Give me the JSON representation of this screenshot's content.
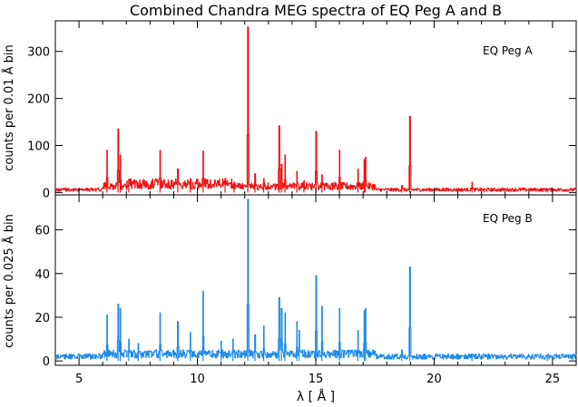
{
  "title": "Combined Chandra MEG spectra of EQ Peg A and B",
  "colors": {
    "star_a": "#ee1111",
    "star_b": "#1e8ae6",
    "axes": "#000000",
    "background": "#ffffff"
  },
  "chart_data": [
    {
      "type": "line",
      "panel": "top",
      "title": "Combined Chandra MEG spectra of EQ Peg A and B",
      "xlabel": "",
      "ylabel": "counts per 0.01 Å bin",
      "legend": "EQ Peg A",
      "legend_position": "top-right",
      "xlim": [
        4,
        26
      ],
      "ylim": [
        -5,
        365
      ],
      "y_ticks": [
        0,
        100,
        200,
        300
      ],
      "x_ticks": [
        5,
        10,
        15,
        20,
        25
      ],
      "baseline": 6,
      "lines": [
        {
          "x": 6.18,
          "y": 90
        },
        {
          "x": 6.65,
          "y": 135
        },
        {
          "x": 6.74,
          "y": 80
        },
        {
          "x": 7.1,
          "y": 28
        },
        {
          "x": 8.42,
          "y": 90
        },
        {
          "x": 9.17,
          "y": 50
        },
        {
          "x": 9.7,
          "y": 30
        },
        {
          "x": 10.24,
          "y": 88
        },
        {
          "x": 11.17,
          "y": 30
        },
        {
          "x": 11.55,
          "y": 22
        },
        {
          "x": 12.13,
          "y": 352
        },
        {
          "x": 12.43,
          "y": 40
        },
        {
          "x": 12.8,
          "y": 30
        },
        {
          "x": 13.45,
          "y": 142
        },
        {
          "x": 13.55,
          "y": 60
        },
        {
          "x": 13.7,
          "y": 80
        },
        {
          "x": 14.2,
          "y": 45
        },
        {
          "x": 14.5,
          "y": 25
        },
        {
          "x": 15.01,
          "y": 130
        },
        {
          "x": 15.26,
          "y": 38
        },
        {
          "x": 16.0,
          "y": 90
        },
        {
          "x": 16.78,
          "y": 50
        },
        {
          "x": 17.05,
          "y": 70
        },
        {
          "x": 17.1,
          "y": 75
        },
        {
          "x": 18.63,
          "y": 15
        },
        {
          "x": 18.97,
          "y": 162
        },
        {
          "x": 21.6,
          "y": 22
        },
        {
          "x": 22.1,
          "y": 8
        },
        {
          "x": 24.78,
          "y": 8
        }
      ]
    },
    {
      "type": "line",
      "panel": "bottom",
      "xlabel": "λ [ Å ]",
      "ylabel": "counts per 0.025 Å bin",
      "legend": "EQ Peg B",
      "legend_position": "top-right",
      "xlim": [
        4,
        26
      ],
      "ylim": [
        -2,
        76
      ],
      "y_ticks": [
        0,
        20,
        40,
        60
      ],
      "x_ticks": [
        5,
        10,
        15,
        20,
        25
      ],
      "baseline": 2,
      "lines": [
        {
          "x": 6.18,
          "y": 21
        },
        {
          "x": 6.65,
          "y": 26
        },
        {
          "x": 6.74,
          "y": 24
        },
        {
          "x": 7.1,
          "y": 10
        },
        {
          "x": 7.5,
          "y": 8
        },
        {
          "x": 8.42,
          "y": 22
        },
        {
          "x": 9.17,
          "y": 18
        },
        {
          "x": 9.7,
          "y": 13
        },
        {
          "x": 10.24,
          "y": 32
        },
        {
          "x": 11.0,
          "y": 9
        },
        {
          "x": 11.5,
          "y": 10
        },
        {
          "x": 12.13,
          "y": 74
        },
        {
          "x": 12.43,
          "y": 12
        },
        {
          "x": 12.8,
          "y": 16
        },
        {
          "x": 13.45,
          "y": 29
        },
        {
          "x": 13.55,
          "y": 24
        },
        {
          "x": 13.7,
          "y": 22
        },
        {
          "x": 14.2,
          "y": 18
        },
        {
          "x": 14.3,
          "y": 14
        },
        {
          "x": 15.01,
          "y": 39
        },
        {
          "x": 15.26,
          "y": 25
        },
        {
          "x": 16.0,
          "y": 24
        },
        {
          "x": 16.78,
          "y": 14
        },
        {
          "x": 17.05,
          "y": 23
        },
        {
          "x": 17.1,
          "y": 24
        },
        {
          "x": 18.63,
          "y": 5
        },
        {
          "x": 18.97,
          "y": 43
        },
        {
          "x": 21.6,
          "y": 3
        },
        {
          "x": 24.78,
          "y": 3
        }
      ]
    }
  ]
}
